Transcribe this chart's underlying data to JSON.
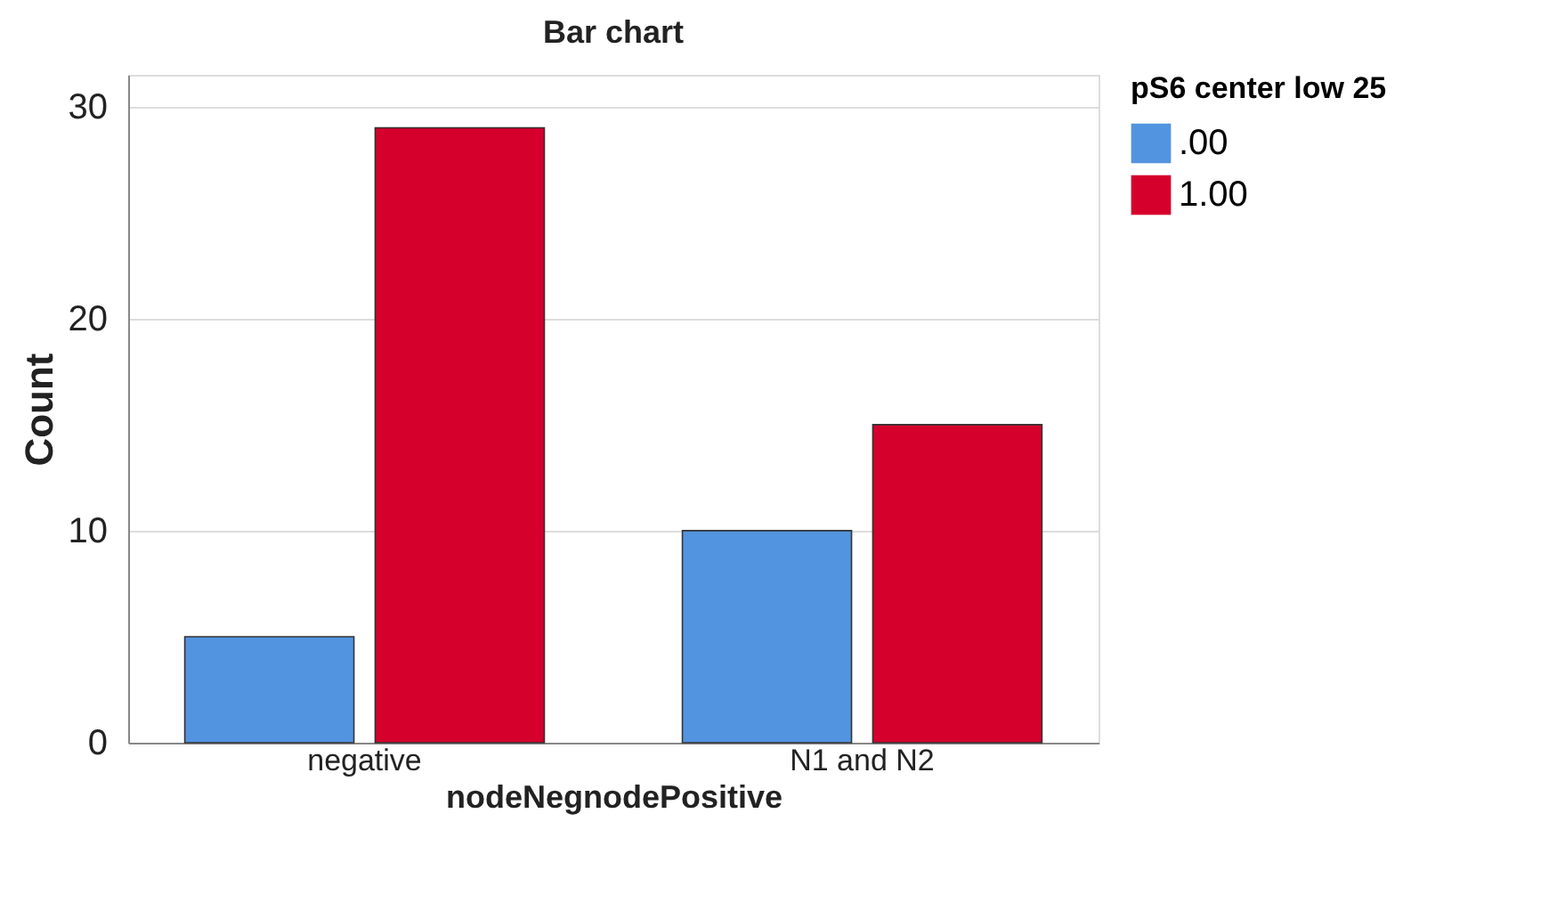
{
  "chart_data": {
    "type": "bar",
    "title": "Bar chart",
    "xlabel": "nodeNegnodePositive",
    "ylabel": "Count",
    "legend_title": "pS6 center low 25",
    "categories": [
      "negative",
      "N1 and N2"
    ],
    "series": [
      {
        "name": ".00",
        "color": "#5294e0",
        "values": [
          5,
          10
        ]
      },
      {
        "name": "1.00",
        "color": "#d5002c",
        "values": [
          29,
          15
        ]
      }
    ],
    "ylim": [
      0,
      31.5
    ],
    "yticks": [
      0,
      10,
      20,
      30
    ],
    "grid": "y",
    "legend": "top right"
  }
}
